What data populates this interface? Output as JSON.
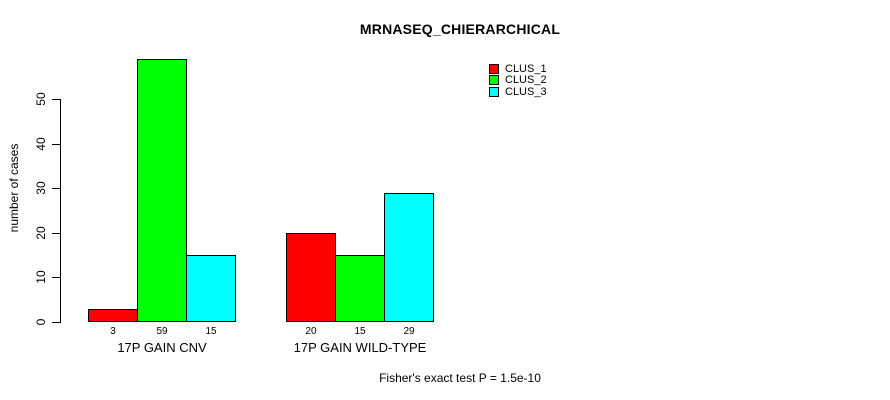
{
  "title": "MRNASEQ_CHIERARCHICAL",
  "chart_data": {
    "type": "bar",
    "grouped": true,
    "title": "MRNASEQ_CHIERARCHICAL",
    "categories": [
      "17P GAIN CNV",
      "17P GAIN WILD-TYPE"
    ],
    "series": [
      {
        "name": "CLUS_1",
        "color": "#ff0000",
        "values": [
          3,
          20
        ]
      },
      {
        "name": "CLUS_2",
        "color": "#00ff00",
        "values": [
          59,
          15
        ]
      },
      {
        "name": "CLUS_3",
        "color": "#00ffff",
        "values": [
          15,
          29
        ]
      }
    ],
    "xlabel": "",
    "ylabel": "number of cases",
    "ylim": [
      0,
      50
    ],
    "yticks": [
      0,
      10,
      20,
      30,
      40,
      50
    ],
    "bar_value_labels": [
      [
        3,
        59,
        15
      ],
      [
        20,
        15,
        29
      ]
    ],
    "grid": false,
    "legend_position": "top-right",
    "legend_entries": [
      "CLUS_1",
      "CLUS_2",
      "CLUS_3"
    ],
    "annotation": "Fisher's exact test P = 1.5e-10"
  }
}
